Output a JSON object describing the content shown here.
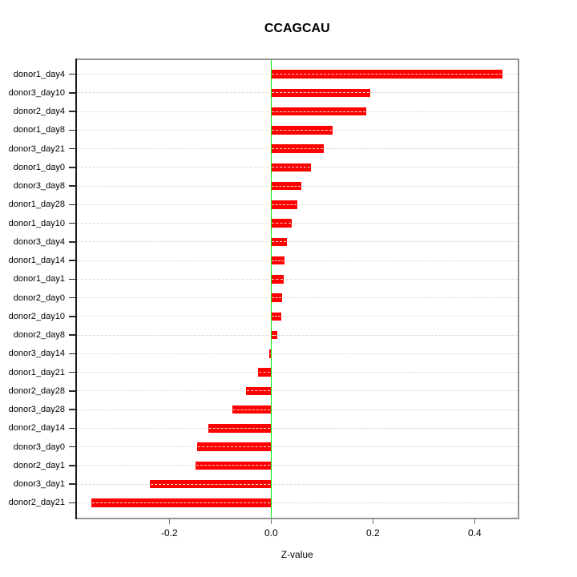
{
  "title": "CCAGCAU",
  "chart_data": {
    "type": "bar",
    "orientation": "horizontal",
    "title": "CCAGCAU",
    "xlabel": "Z-value",
    "ylabel": "",
    "categories": [
      "donor1_day4",
      "donor3_day10",
      "donor2_day4",
      "donor1_day8",
      "donor3_day21",
      "donor1_day0",
      "donor3_day8",
      "donor1_day28",
      "donor1_day10",
      "donor3_day4",
      "donor1_day14",
      "donor1_day1",
      "donor2_day0",
      "donor2_day10",
      "donor2_day8",
      "donor3_day14",
      "donor1_day21",
      "donor2_day28",
      "donor3_day28",
      "donor2_day14",
      "donor3_day0",
      "donor2_day1",
      "donor3_day1",
      "donor2_day21"
    ],
    "values": [
      0.455,
      0.195,
      0.187,
      0.121,
      0.104,
      0.079,
      0.059,
      0.051,
      0.041,
      0.031,
      0.026,
      0.024,
      0.021,
      0.02,
      0.012,
      -0.004,
      -0.025,
      -0.05,
      -0.076,
      -0.123,
      -0.145,
      -0.149,
      -0.238,
      -0.353
    ],
    "x_ticks": [
      -0.2,
      0.0,
      0.2,
      0.4
    ],
    "x_tick_labels": [
      "-0.2",
      "0.0",
      "0.2",
      "0.4"
    ],
    "xlim": [
      -0.386,
      0.488
    ],
    "grid": "horizontal dashed line per category, drawn across full plot width",
    "zero_reference_line": 0.0,
    "legend_position": "none",
    "sorted": "descending top to bottom"
  },
  "colors": {
    "bar": "#ff0000",
    "zero_line": "#00ee00",
    "grid": "#d9d9d9",
    "box": "#949494",
    "axis": "#1a1a1a",
    "text": "#000000"
  }
}
